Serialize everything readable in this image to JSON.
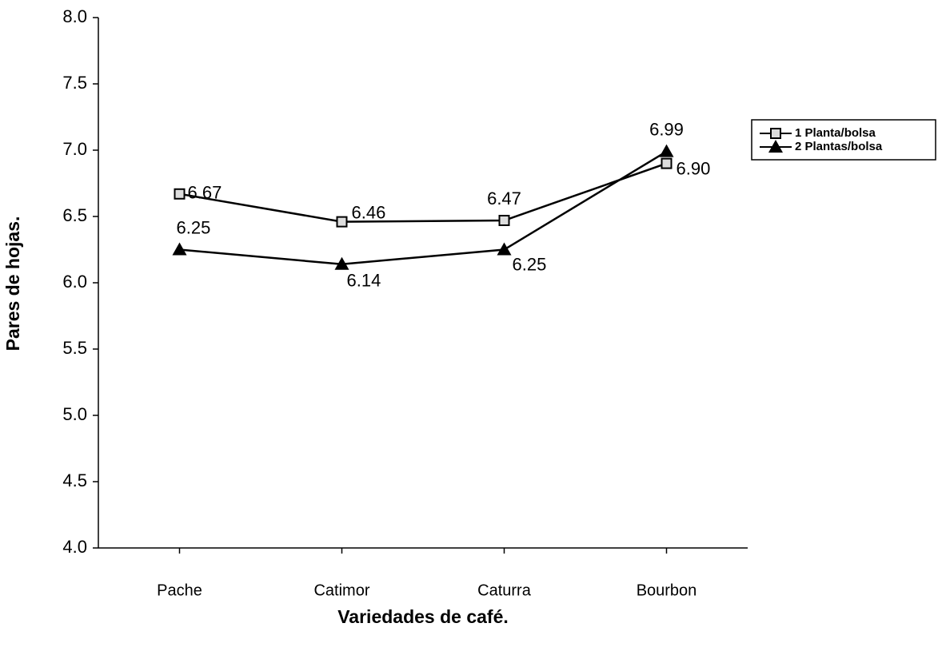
{
  "chart_data": {
    "type": "line",
    "x_label": "Variedades de café.",
    "y_label": "Pares de hojas.",
    "categories": [
      "Pache",
      "Catimor",
      "Caturra",
      "Bourbon"
    ],
    "series": [
      {
        "name": "1 Planta/bolsa",
        "color": "#000000",
        "marker": "square",
        "values": [
          6.67,
          6.46,
          6.47,
          6.9
        ],
        "value_labels": [
          "6.67",
          "6.46",
          "6.47",
          "6.90"
        ]
      },
      {
        "name": "2 Plantas/bolsa",
        "color": "#000000",
        "marker": "triangle",
        "values": [
          6.25,
          6.14,
          6.25,
          6.99
        ],
        "value_labels": [
          "6.25",
          "6.14",
          "6.25",
          "6.99"
        ]
      }
    ],
    "ylim": [
      4.0,
      8.0
    ],
    "yticks": [
      {
        "value": 4,
        "label": "4.0"
      },
      4.5,
      {
        "value": 5,
        "label": "5.0"
      },
      5.5,
      {
        "value": 6,
        "label": "6.0"
      },
      6.5,
      {
        "value": 7,
        "label": "7.0"
      },
      7.5,
      {
        "value": 8,
        "label": "8.0"
      }
    ],
    "grid": false,
    "legend": "right"
  }
}
